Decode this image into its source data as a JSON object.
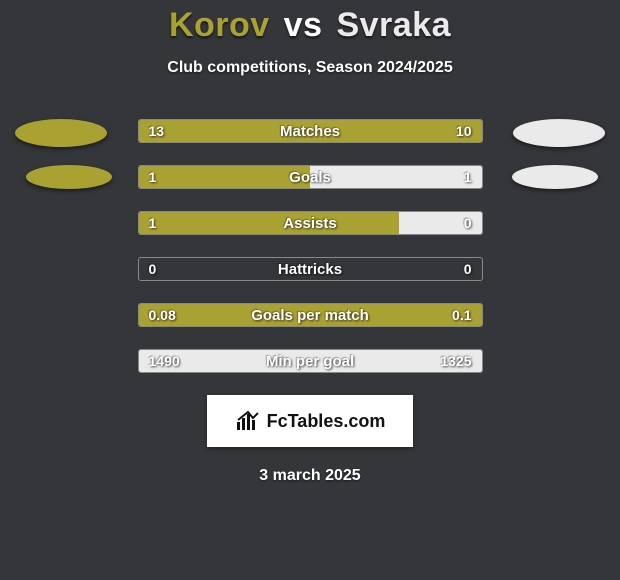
{
  "colors": {
    "background": "#343639",
    "player1": "#a9a232",
    "player2": "#eaeaea",
    "text": "#ffffff",
    "row_border": "#888888",
    "logo_bg": "#ffffff",
    "logo_text": "#111111",
    "badge_shadow": "rgba(0,0,0,0.5)"
  },
  "title": {
    "player1": "Korov",
    "vs": "vs",
    "player2": "Svraka"
  },
  "subtitle": "Club competitions, Season 2024/2025",
  "rows": [
    {
      "label": "Matches",
      "left_val": "13",
      "right_val": "10",
      "left_pct": 100,
      "right_pct": 0
    },
    {
      "label": "Goals",
      "left_val": "1",
      "right_val": "1",
      "left_pct": 50,
      "right_pct": 50
    },
    {
      "label": "Assists",
      "left_val": "1",
      "right_val": "0",
      "left_pct": 76,
      "right_pct": 24
    },
    {
      "label": "Hattricks",
      "left_val": "0",
      "right_val": "0",
      "left_pct": 0,
      "right_pct": 0
    },
    {
      "label": "Goals per match",
      "left_val": "0.08",
      "right_val": "0.1",
      "left_pct": 100,
      "right_pct": 0
    },
    {
      "label": "Min per goal",
      "left_val": "1490",
      "right_val": "1325",
      "left_pct": 0,
      "right_pct": 100
    }
  ],
  "footer": {
    "logo_text": "FcTables.com",
    "date": "3 march 2025"
  }
}
